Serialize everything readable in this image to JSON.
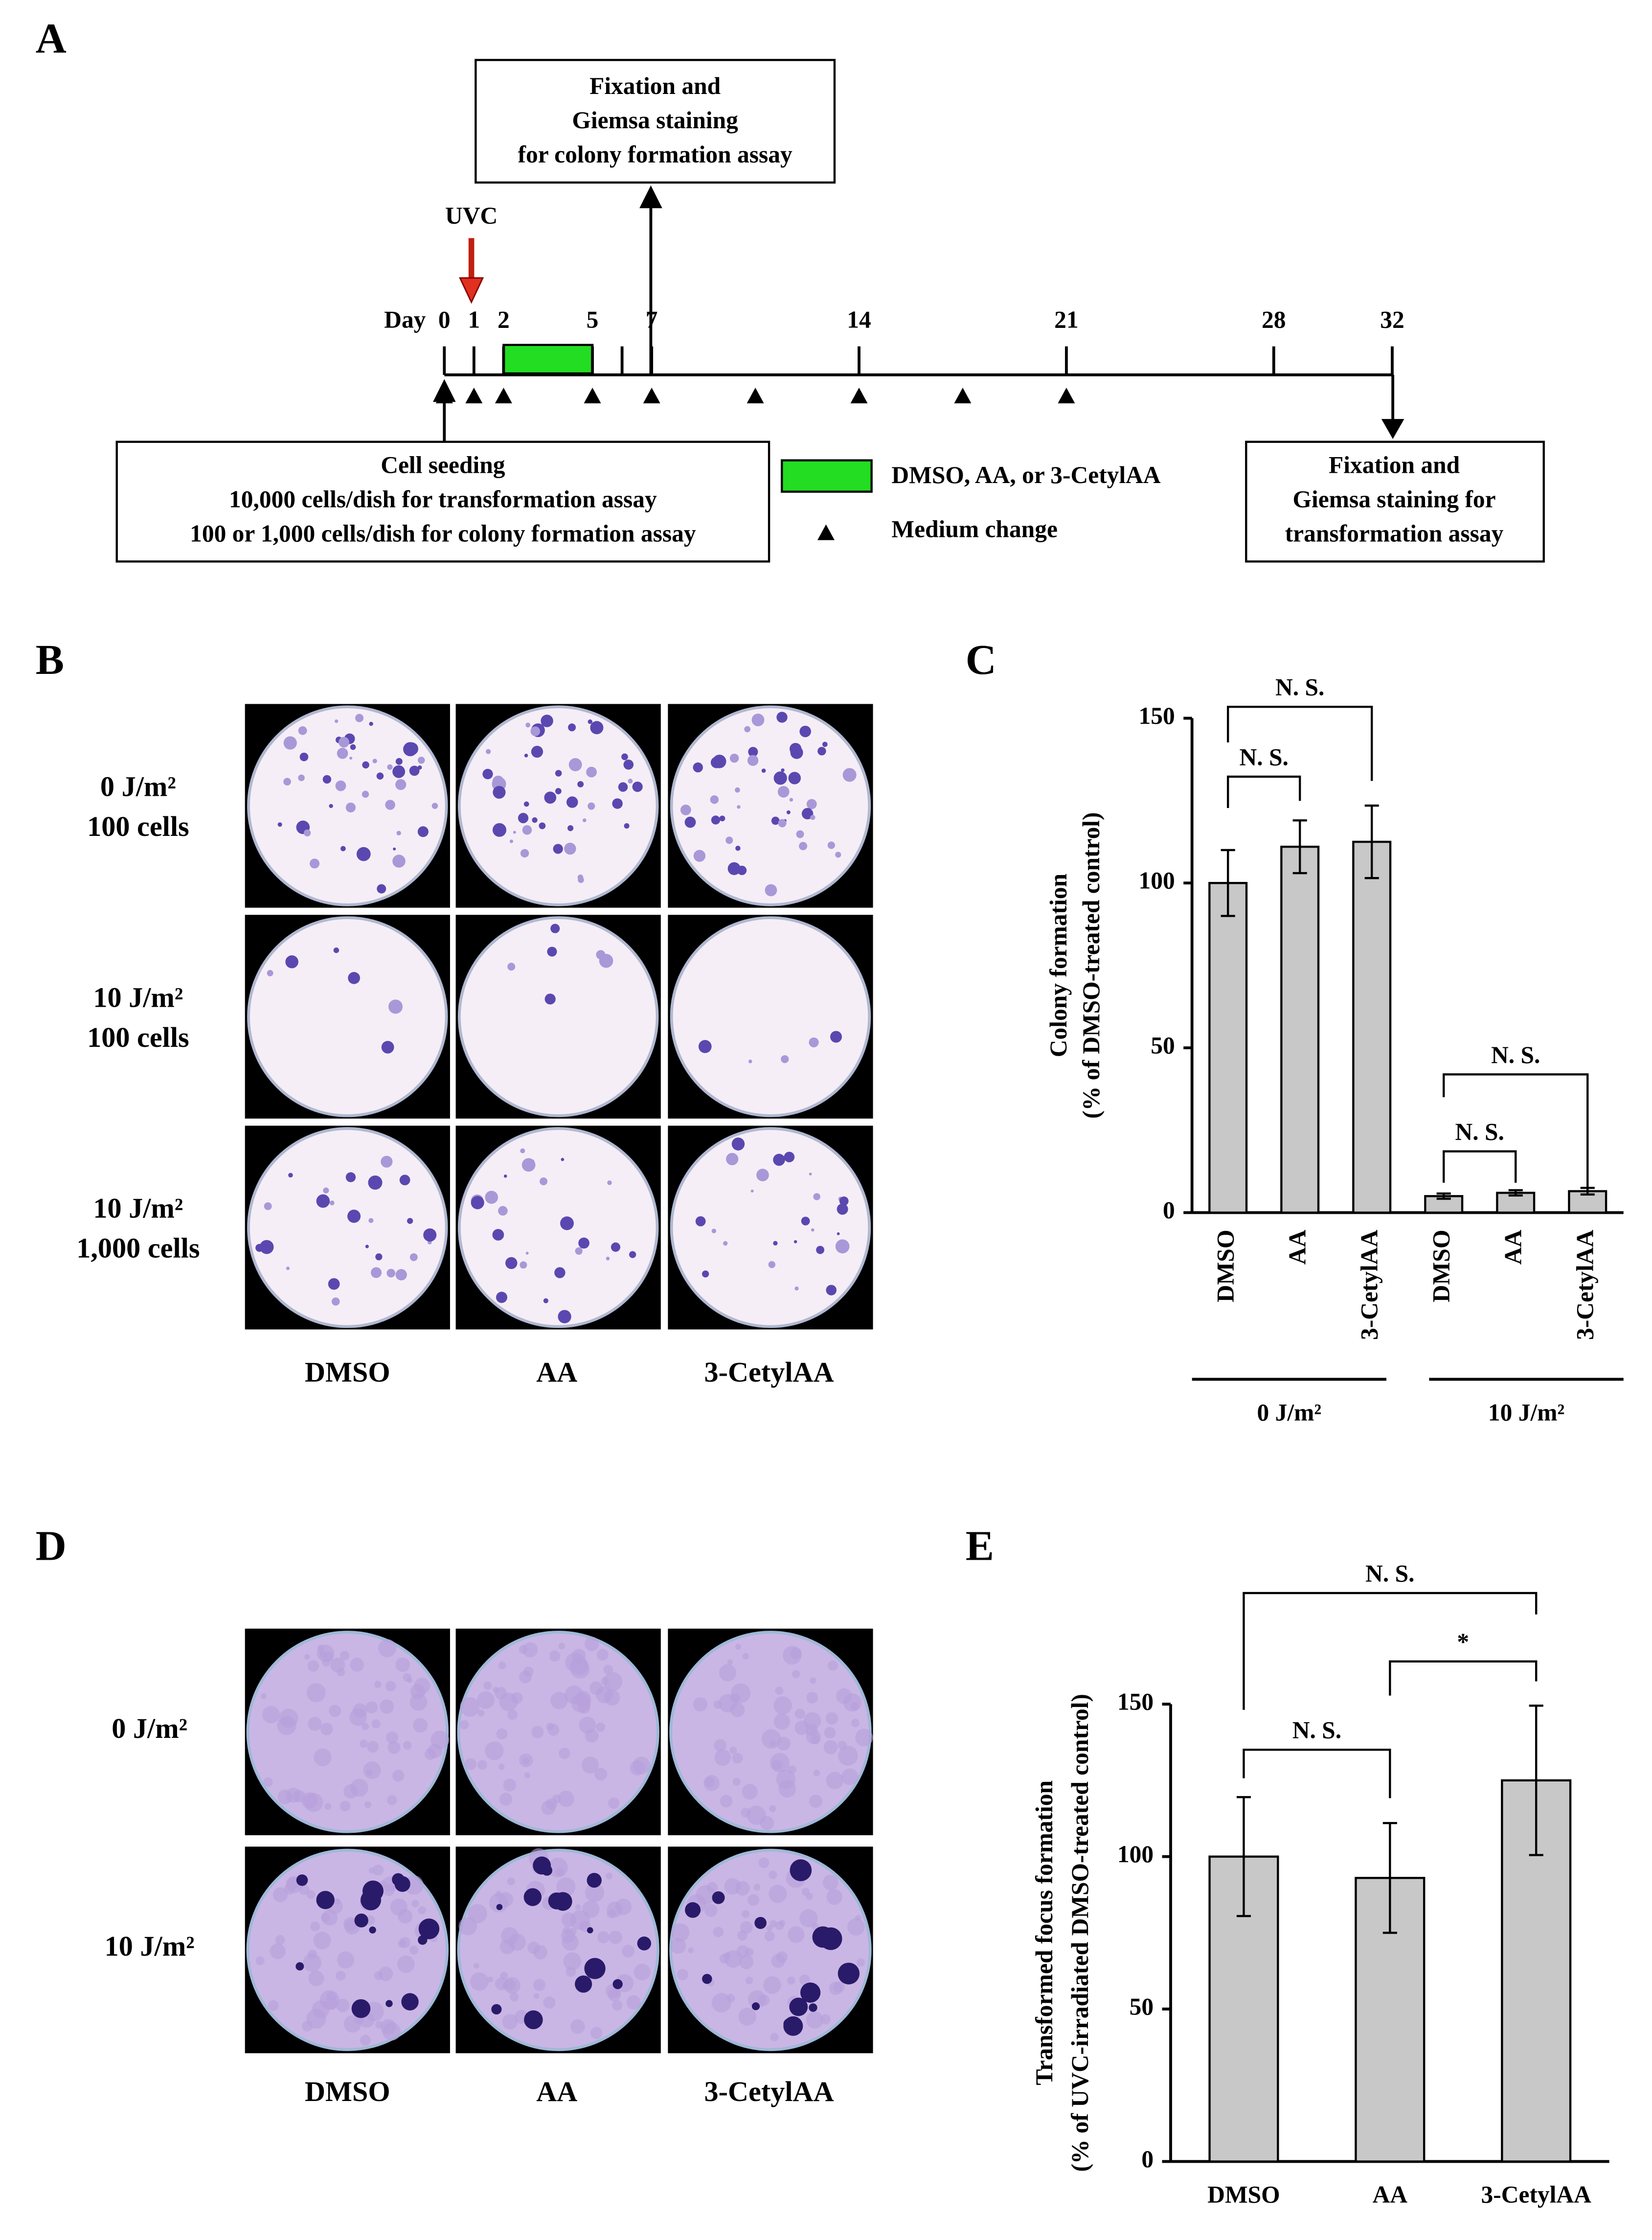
{
  "panel_a": {
    "label": "A",
    "top_box": [
      "Fixation and",
      "Giemsa staining",
      "for colony formation assay"
    ],
    "uvc": "UVC",
    "day_label": "Day",
    "days": [
      0,
      1,
      2,
      5,
      7,
      14,
      21,
      28,
      32
    ],
    "medium_change_days": [
      0,
      1,
      2,
      5,
      7,
      10.5,
      14,
      17.5,
      21
    ],
    "bottom_left_box": [
      "Cell seeding",
      "10,000 cells/dish for transformation assay",
      "100 or 1,000 cells/dish for colony formation assay"
    ],
    "legend": [
      "DMSO, AA, or 3-CetylAA",
      "Medium change"
    ],
    "bottom_right_box": [
      "Fixation and",
      "Giemsa staining for",
      "transformation assay"
    ]
  },
  "panel_b": {
    "label": "B",
    "rows": [
      [
        "0 J/m²",
        "100 cells"
      ],
      [
        "10 J/m²",
        "100 cells"
      ],
      [
        "10 J/m²",
        "1,000 cells"
      ]
    ],
    "columns": [
      "DMSO",
      "AA",
      "3-CetylAA"
    ]
  },
  "panel_d": {
    "label": "D",
    "rows": [
      "0 J/m²",
      "10 J/m²"
    ],
    "columns": [
      "DMSO",
      "AA",
      "3-CetylAA"
    ]
  },
  "chart_data": [
    {
      "type": "bar",
      "panel": "C",
      "ylabel": [
        "Colony formation",
        "(% of DMSO-treated control)"
      ],
      "categories": [
        "DMSO",
        "AA",
        "3-CetylAA",
        "DMSO",
        "AA",
        "3-CetylAA"
      ],
      "values": [
        100,
        111,
        112.5,
        5,
        6,
        6.5
      ],
      "errors": [
        10,
        8,
        11,
        0.8,
        0.8,
        1
      ],
      "color": "#c8c8c8",
      "groups": [
        "0 J/m²",
        "10 J/m²"
      ],
      "annotations": [
        "N. S.",
        "N. S.",
        "N. S.",
        "N. S."
      ],
      "ylim": [
        0,
        150
      ],
      "yticks": [
        0,
        50,
        100,
        150
      ]
    },
    {
      "type": "bar",
      "panel": "E",
      "ylabel": [
        "Transformed focus formation",
        "(% of UVC-irradiated DMSO-treated control)"
      ],
      "categories": [
        "DMSO",
        "AA",
        "3-CetylAA"
      ],
      "values": [
        100,
        93,
        125
      ],
      "errors": [
        19.5,
        18,
        24.5
      ],
      "color": "#c8c8c8",
      "annotations": [
        "N. S.",
        "*",
        "N. S."
      ],
      "ylim": [
        0,
        150
      ],
      "yticks": [
        0,
        50,
        100,
        150
      ]
    }
  ]
}
